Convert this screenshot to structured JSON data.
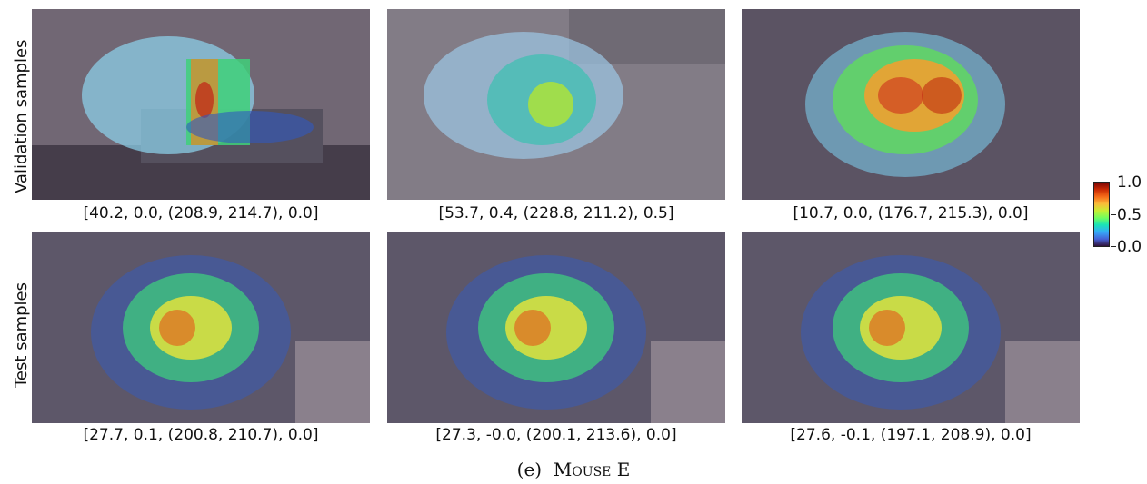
{
  "rows": [
    {
      "label": "Validation samples"
    },
    {
      "label": "Test samples"
    }
  ],
  "panels": [
    {
      "caption": "[40.2, 0.0, (208.9, 214.7), 0.0]",
      "bg": "#6f6573"
    },
    {
      "caption": "[53.7, 0.4, (228.8, 211.2), 0.5]",
      "bg": "#7d7880"
    },
    {
      "caption": "[10.7, 0.0, (176.7, 215.3), 0.0]",
      "bg": "#5a5262"
    },
    {
      "caption": "[27.7, 0.1, (200.8, 210.7), 0.0]",
      "bg": "#5c5668"
    },
    {
      "caption": "[27.3, -0.0, (200.1, 213.6), 0.0]",
      "bg": "#5c5668"
    },
    {
      "caption": "[27.6, -0.1, (197.1, 208.9), 0.0]",
      "bg": "#5c5668"
    }
  ],
  "colorbar": {
    "ticks": [
      "1.0",
      "0.5",
      "0.0"
    ]
  },
  "subcaption": {
    "prefix": "(e)",
    "name": "Mouse E"
  }
}
